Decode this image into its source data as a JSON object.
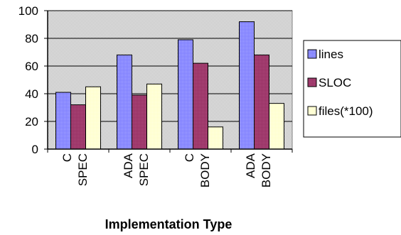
{
  "chart_data": {
    "type": "bar",
    "categories": [
      [
        "C",
        "SPEC"
      ],
      [
        "ADA",
        "SPEC"
      ],
      [
        "C",
        "BODY"
      ],
      [
        "ADA",
        "BODY"
      ]
    ],
    "series": [
      {
        "name": "lines",
        "values": [
          41,
          68,
          79,
          92
        ],
        "color": "#8080ff"
      },
      {
        "name": "SLOC",
        "values": [
          32,
          39,
          62,
          68
        ],
        "color": "#993366"
      },
      {
        "name": "files(*100)",
        "values": [
          45,
          47,
          16,
          33
        ],
        "color": "#ffffcc"
      }
    ],
    "xlabel": "Implementation Type",
    "ylabel": "",
    "ylim": [
      0,
      100
    ],
    "yticks": [
      "0",
      "20",
      "40",
      "60",
      "80",
      "100"
    ],
    "grid": true,
    "legend": "right",
    "plot_background": "#c0c0c0"
  }
}
